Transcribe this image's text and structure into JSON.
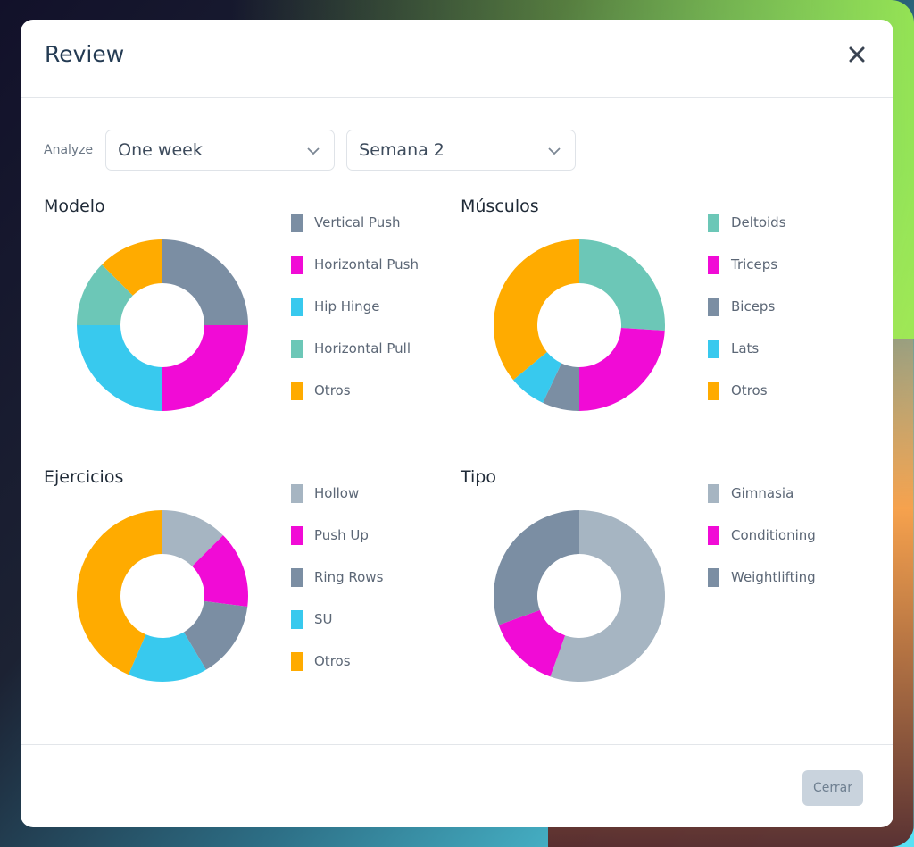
{
  "modal": {
    "title": "Review",
    "close_icon": "close-icon"
  },
  "filters": {
    "label": "Analyze",
    "period": {
      "value": "One week",
      "icon": "chevron-down-icon"
    },
    "week": {
      "value": "Semana 2",
      "icon": "chevron-down-icon"
    }
  },
  "colors": {
    "slate": "#7b8ea3",
    "magenta": "#f10bd6",
    "cyan": "#38c9ee",
    "teal": "#6cc7b7",
    "orange": "#ffab00",
    "lightgray": "#a6b5c2"
  },
  "chart_data": [
    {
      "type": "pie",
      "title": "Modelo",
      "categories": [
        "Vertical Push",
        "Horizontal Push",
        "Hip Hinge",
        "Horizontal Pull",
        "Otros"
      ],
      "values": [
        25,
        25,
        25,
        12.5,
        12.5
      ],
      "colors": [
        "#7b8ea3",
        "#f10bd6",
        "#38c9ee",
        "#6cc7b7",
        "#ffab00"
      ]
    },
    {
      "type": "pie",
      "title": "Músculos",
      "categories": [
        "Deltoids",
        "Triceps",
        "Biceps",
        "Lats",
        "Otros"
      ],
      "values": [
        26,
        24,
        7,
        7,
        36
      ],
      "colors": [
        "#6cc7b7",
        "#f10bd6",
        "#7b8ea3",
        "#38c9ee",
        "#ffab00"
      ]
    },
    {
      "type": "pie",
      "title": "Ejercicios",
      "categories": [
        "Hollow",
        "Push Up",
        "Ring Rows",
        "SU",
        "Otros"
      ],
      "values": [
        12.5,
        14.5,
        14.5,
        15,
        43.5
      ],
      "colors": [
        "#a6b5c2",
        "#f10bd6",
        "#7b8ea3",
        "#38c9ee",
        "#ffab00"
      ]
    },
    {
      "type": "pie",
      "title": "Tipo",
      "categories": [
        "Gimnasia",
        "Conditioning",
        "Weightlifting"
      ],
      "values": [
        55.5,
        14,
        30.5
      ],
      "colors": [
        "#a6b5c2",
        "#f10bd6",
        "#7b8ea3"
      ]
    }
  ],
  "footer": {
    "close_label": "Cerrar"
  }
}
